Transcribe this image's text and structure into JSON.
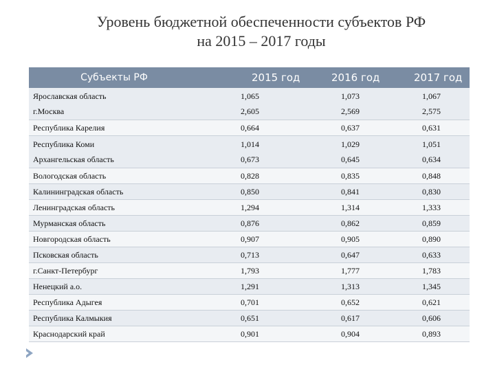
{
  "title": {
    "line1": "Уровень бюджетной обеспеченности субъектов РФ",
    "line2": "на 2015 – 2017 годы"
  },
  "table": {
    "headers": [
      "Субъекты РФ",
      "2015 год",
      "2016 год",
      "2017 год"
    ],
    "rows": [
      {
        "names": [
          "Ярославская область",
          "г.Москва"
        ],
        "y2015": [
          "1,065",
          "2,605"
        ],
        "y2016": [
          "1,073",
          "2,569"
        ],
        "y2017": [
          "1,067",
          "2,575"
        ]
      },
      {
        "names": [
          "Республика Карелия"
        ],
        "y2015": [
          "0,664"
        ],
        "y2016": [
          "0,637"
        ],
        "y2017": [
          "0,631"
        ]
      },
      {
        "names": [
          "Республика Коми",
          "Архангельская область"
        ],
        "y2015": [
          "1,014",
          "0,673"
        ],
        "y2016": [
          "1,029",
          "0,645"
        ],
        "y2017": [
          "1,051",
          "0,634"
        ]
      },
      {
        "names": [
          "Вологодская область"
        ],
        "y2015": [
          "0,828"
        ],
        "y2016": [
          "0,835"
        ],
        "y2017": [
          "0,848"
        ]
      },
      {
        "names": [
          "Калининградская область"
        ],
        "y2015": [
          "0,850"
        ],
        "y2016": [
          "0,841"
        ],
        "y2017": [
          "0,830"
        ]
      },
      {
        "names": [
          "Ленинградская область"
        ],
        "y2015": [
          "1,294"
        ],
        "y2016": [
          "1,314"
        ],
        "y2017": [
          "1,333"
        ]
      },
      {
        "names": [
          "Мурманская область"
        ],
        "y2015": [
          "0,876"
        ],
        "y2016": [
          "0,862"
        ],
        "y2017": [
          "0,859"
        ]
      },
      {
        "names": [
          "Новгородская область"
        ],
        "y2015": [
          "0,907"
        ],
        "y2016": [
          "0,905"
        ],
        "y2017": [
          "0,890"
        ]
      },
      {
        "names": [
          "Псковская область"
        ],
        "y2015": [
          "0,713"
        ],
        "y2016": [
          "0,647"
        ],
        "y2017": [
          "0,633"
        ]
      },
      {
        "names": [
          "г.Санкт-Петербург"
        ],
        "y2015": [
          "1,793"
        ],
        "y2016": [
          "1,777"
        ],
        "y2017": [
          "1,783"
        ]
      },
      {
        "names": [
          "Ненецкий а.о."
        ],
        "y2015": [
          "1,291"
        ],
        "y2016": [
          "1,313"
        ],
        "y2017": [
          "1,345"
        ]
      },
      {
        "names": [
          "Республика Адыгея"
        ],
        "y2015": [
          "0,701"
        ],
        "y2016": [
          "0,652"
        ],
        "y2017": [
          "0,621"
        ]
      },
      {
        "names": [
          "Республика Калмыкия"
        ],
        "y2015": [
          "0,651"
        ],
        "y2016": [
          "0,617"
        ],
        "y2017": [
          "0,606"
        ]
      },
      {
        "names": [
          "Краснодарский край"
        ],
        "y2015": [
          "0,901"
        ],
        "y2016": [
          "0,904"
        ],
        "y2017": [
          "0,893"
        ]
      }
    ]
  },
  "colors": {
    "header_bg": "#7a8ca3",
    "row_odd": "#e8ecf1",
    "row_even": "#f4f6f8",
    "bullet": "#8ea5c2"
  },
  "icons": {
    "bullet": "bullet-arrow-icon"
  }
}
